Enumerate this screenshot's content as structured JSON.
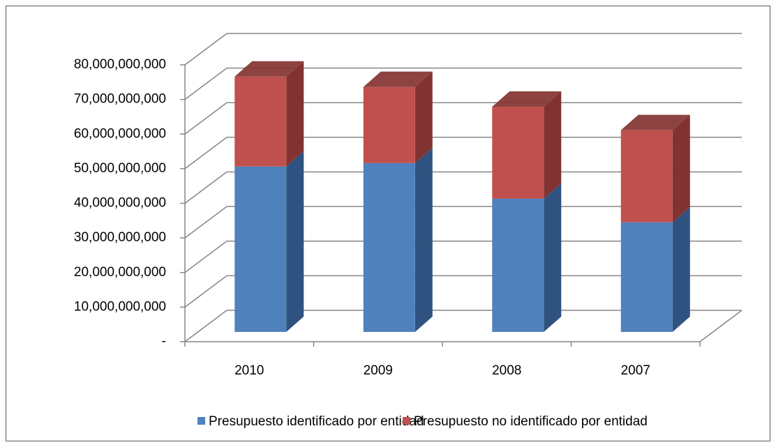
{
  "chart_data": {
    "type": "bar3d_stacked",
    "categories": [
      "2010",
      "2009",
      "2008",
      "2007"
    ],
    "series": [
      {
        "name": "Presupuesto identificado por entidad",
        "color": "#4f81bd",
        "side_color": "#2f5280",
        "values": [
          47800000000,
          48800000000,
          38500000000,
          31700000000
        ]
      },
      {
        "name": "Presupuesto no identificado por entidad",
        "color": "#c0504d",
        "side_color": "#823331",
        "values": [
          26000000000,
          22000000000,
          26600000000,
          26600000000
        ]
      }
    ],
    "ylim": [
      0,
      80000000000
    ],
    "yticks": [
      {
        "value": 0,
        "label": "-"
      },
      {
        "value": 10000000000,
        "label": "10,000,000,000"
      },
      {
        "value": 20000000000,
        "label": "20,000,000,000"
      },
      {
        "value": 30000000000,
        "label": "30,000,000,000"
      },
      {
        "value": 40000000000,
        "label": "40,000,000,000"
      },
      {
        "value": 50000000000,
        "label": "50,000,000,000"
      },
      {
        "value": 60000000000,
        "label": "60,000,000,000"
      },
      {
        "value": 70000000000,
        "label": "70,000,000,000"
      },
      {
        "value": 80000000000,
        "label": "80,000,000,000"
      }
    ],
    "grid": true,
    "legend": "bottom"
  }
}
